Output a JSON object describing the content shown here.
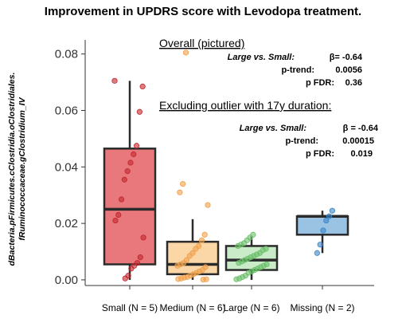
{
  "chart_data": {
    "type": "box",
    "title": "Improvement in UPDRS  score with Levodopa treatment.",
    "ylabel_line1": "dBacteria.pFirmicutes.cClostridia.oClostridiales.",
    "ylabel_line2": "fRuminococcaceae.gClostridium_IV",
    "ylim": [
      -0.002,
      0.085
    ],
    "yticks": [
      "0.00",
      "0.02",
      "0.04",
      "0.06",
      "0.08"
    ],
    "ytick_values": [
      0.0,
      0.02,
      0.04,
      0.06,
      0.08
    ],
    "categories": [
      "Small (N = 5)",
      "Medium (N = 6)",
      "Large (N = 6)",
      "Missing (N = 2)"
    ],
    "boxes": [
      {
        "category": "Small (N = 5)",
        "q1": 0.0055,
        "median": 0.025,
        "q3": 0.0465,
        "whisker_low": 0.0,
        "whisker_high": 0.0705,
        "color": "#e8787c",
        "edge": "#2b2b2b",
        "points": [
          0.0705,
          0.0685,
          0.0595,
          0.0475,
          0.0445,
          0.0415,
          0.0385,
          0.0355,
          0.0285,
          0.023,
          0.021,
          0.015,
          0.008,
          0.006,
          0.005,
          0.004,
          0.0015,
          0.0005
        ]
      },
      {
        "category": "Medium (N = 6)",
        "q1": 0.002,
        "median": 0.0055,
        "q3": 0.0135,
        "whisker_low": 0.0,
        "whisker_high": 0.0215,
        "color": "#fbd6a6",
        "edge": "#2b2b2b",
        "points": [
          0.0805,
          0.034,
          0.031,
          0.0265,
          0.016,
          0.014,
          0.012,
          0.011,
          0.0095,
          0.0085,
          0.007,
          0.006,
          0.0055,
          0.005,
          0.0045,
          0.0035,
          0.003,
          0.0025,
          0.002,
          0.0015,
          0.001,
          0.0008,
          0.0005,
          0.0003,
          0.0002,
          0.0001
        ]
      },
      {
        "category": "Large (N = 6)",
        "q1": 0.0035,
        "median": 0.007,
        "q3": 0.012,
        "whisker_low": 0.0,
        "whisker_high": 0.0155,
        "color": "#c9ebc7",
        "edge": "#2b2b2b",
        "points": [
          0.016,
          0.015,
          0.014,
          0.013,
          0.0125,
          0.012,
          0.011,
          0.0105,
          0.0095,
          0.009,
          0.0085,
          0.008,
          0.0075,
          0.007,
          0.0065,
          0.006,
          0.0055,
          0.005,
          0.0045,
          0.004,
          0.0035,
          0.003,
          0.0025,
          0.0015,
          0.001,
          0.0005,
          0.0002
        ]
      },
      {
        "category": "Missing (N = 2)",
        "q1": 0.016,
        "median": 0.0225,
        "q3": 0.0225,
        "whisker_low": 0.0095,
        "whisker_high": 0.0245,
        "color": "#99c2e3",
        "edge": "#2b2b2b",
        "points": [
          0.0245,
          0.0225,
          0.021,
          0.0175,
          0.0125,
          0.0095
        ]
      }
    ],
    "annotations": {
      "overall_heading": "Overall (pictured)",
      "overall_lines": [
        {
          "label": "Large vs. Small:",
          "beta": "β= -0.64"
        },
        {
          "label": "p-trend:",
          "value": "0.0056"
        },
        {
          "label": "p FDR:",
          "value": "0.36"
        }
      ],
      "excluding_heading": "Excluding outlier with 17y duration:",
      "excluding_lines": [
        {
          "label": "Large vs. Small:",
          "beta": "β = -0.64"
        },
        {
          "label": "p-trend:",
          "value": "0.00015"
        },
        {
          "label": "p FDR:",
          "value": "0.019"
        }
      ]
    },
    "grid": false,
    "legend": "none"
  }
}
